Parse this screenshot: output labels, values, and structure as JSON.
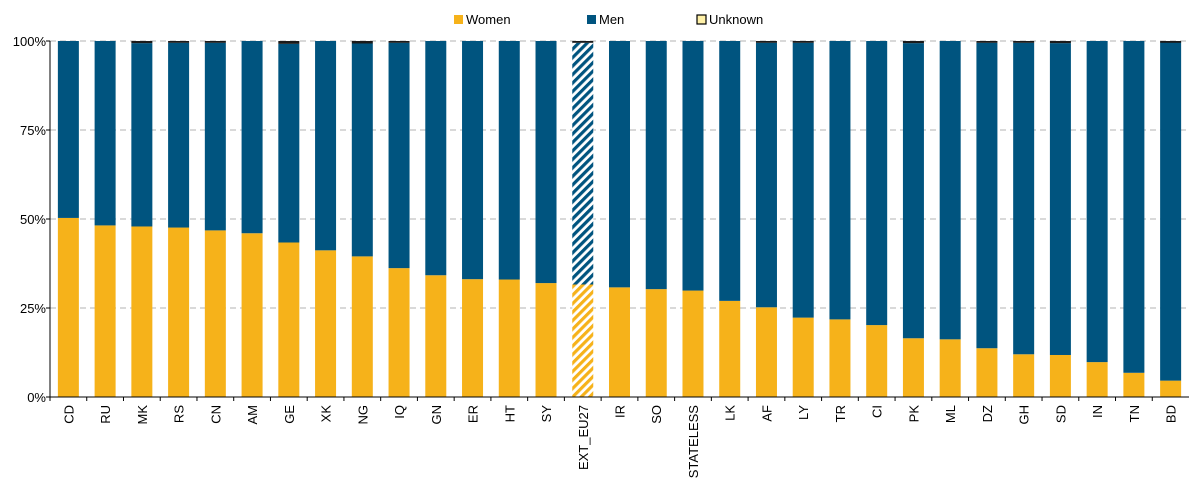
{
  "chart_data": {
    "type": "bar",
    "stacked": true,
    "percent_stacked": true,
    "title": "",
    "xlabel": "",
    "ylabel": "",
    "ylim": [
      0,
      100
    ],
    "yticks": [
      "0%",
      "25%",
      "50%",
      "75%",
      "100%"
    ],
    "ytick_values": [
      0,
      25,
      50,
      75,
      100
    ],
    "grid": "horizontal dashed",
    "legend_position": "top-center",
    "legend": [
      "Women",
      "Men",
      "Unknown"
    ],
    "highlighted_category": "EXT_EU27",
    "colors": {
      "women": "#f6b21a",
      "men": "#00547f",
      "unknown": "#1a1a1a",
      "unknown_legend": "#fff1a8"
    },
    "categories": [
      "CD",
      "RU",
      "MK",
      "RS",
      "CN",
      "AM",
      "GE",
      "XK",
      "NG",
      "IQ",
      "GN",
      "ER",
      "HT",
      "SY",
      "EXT_EU27",
      "IR",
      "SO",
      "STATELESS",
      "LK",
      "AF",
      "LY",
      "TR",
      "CI",
      "PK",
      "ML",
      "DZ",
      "GH",
      "SD",
      "IN",
      "TN",
      "BD"
    ],
    "series": [
      {
        "name": "Women",
        "values": [
          50.3,
          48.2,
          47.9,
          47.6,
          46.8,
          46.0,
          43.4,
          41.2,
          39.5,
          36.2,
          34.2,
          33.1,
          33.0,
          32.0,
          31.6,
          30.8,
          30.3,
          29.9,
          27.0,
          25.2,
          22.3,
          21.8,
          20.2,
          16.5,
          16.2,
          13.7,
          12.0,
          11.8,
          9.8,
          6.8,
          4.6
        ]
      },
      {
        "name": "Men",
        "values": [
          49.7,
          51.8,
          51.5,
          51.9,
          52.7,
          54.0,
          55.8,
          58.8,
          59.8,
          63.3,
          65.8,
          66.9,
          67.0,
          68.0,
          67.9,
          69.2,
          69.7,
          70.1,
          73.0,
          74.3,
          77.2,
          78.2,
          79.8,
          82.9,
          83.8,
          85.8,
          87.5,
          87.6,
          90.2,
          93.2,
          95.0
        ]
      },
      {
        "name": "Unknown",
        "values": [
          0.0,
          0.0,
          0.6,
          0.5,
          0.5,
          0.0,
          0.8,
          0.0,
          0.7,
          0.5,
          0.0,
          0.0,
          0.0,
          0.0,
          0.5,
          0.0,
          0.0,
          0.0,
          0.0,
          0.5,
          0.5,
          0.0,
          0.0,
          0.6,
          0.0,
          0.5,
          0.5,
          0.6,
          0.0,
          0.0,
          0.4
        ]
      }
    ]
  }
}
